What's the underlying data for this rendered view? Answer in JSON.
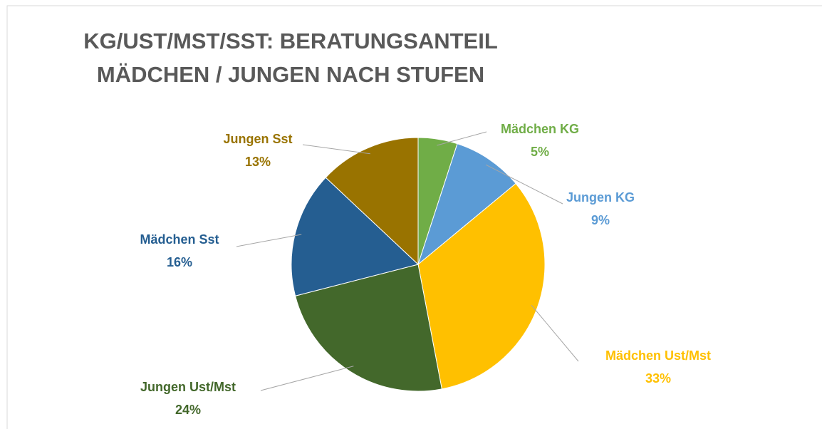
{
  "chart_data": {
    "type": "pie",
    "title": [
      "KG/UST/MST/SST: BERATUNGSANTEIL",
      "MÄDCHEN / JUNGEN NACH STUFEN"
    ],
    "categories": [
      "Mädchen KG",
      "Jungen KG",
      "Mädchen Ust/Mst",
      "Jungen Ust/Mst",
      "Mädchen Sst",
      "Jungen Sst"
    ],
    "values": [
      5,
      9,
      33,
      24,
      16,
      13
    ],
    "value_labels": [
      "5%",
      "9%",
      "33%",
      "24%",
      "16%",
      "13%"
    ],
    "colors": [
      "#70ad47",
      "#5b9bd5",
      "#ffc000",
      "#43682b",
      "#255e91",
      "#997300"
    ]
  }
}
